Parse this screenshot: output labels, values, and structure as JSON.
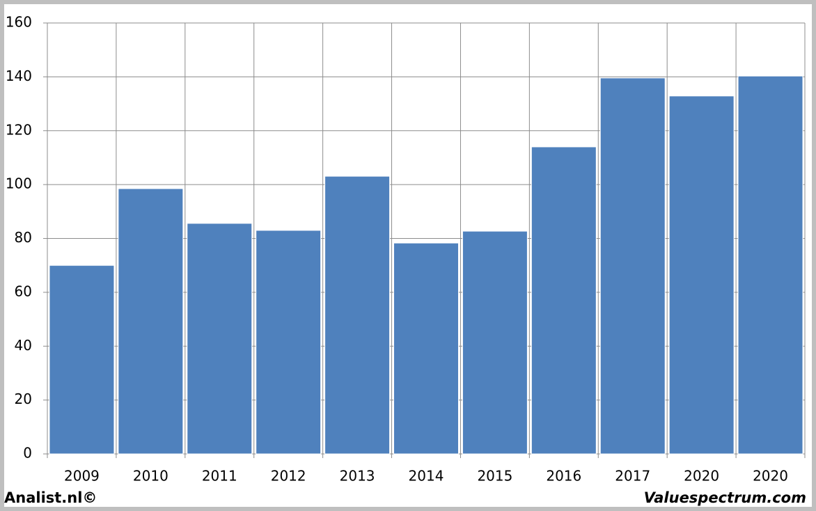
{
  "chart_data": {
    "type": "bar",
    "categories": [
      "2009",
      "2010",
      "2011",
      "2012",
      "2013",
      "2014",
      "2015",
      "2016",
      "2017",
      "2020",
      "2020"
    ],
    "values": [
      70,
      98.5,
      85.6,
      83,
      103.1,
      78.3,
      82.7,
      114,
      139.6,
      132.9,
      140.3
    ],
    "color": "#4f81bd",
    "ylim": [
      0,
      160
    ],
    "yticks": [
      0,
      20,
      40,
      60,
      80,
      100,
      120,
      140,
      160
    ],
    "grid": true,
    "footer_left": "Analist.nl©",
    "footer_right": "Valuespectrum.com"
  }
}
